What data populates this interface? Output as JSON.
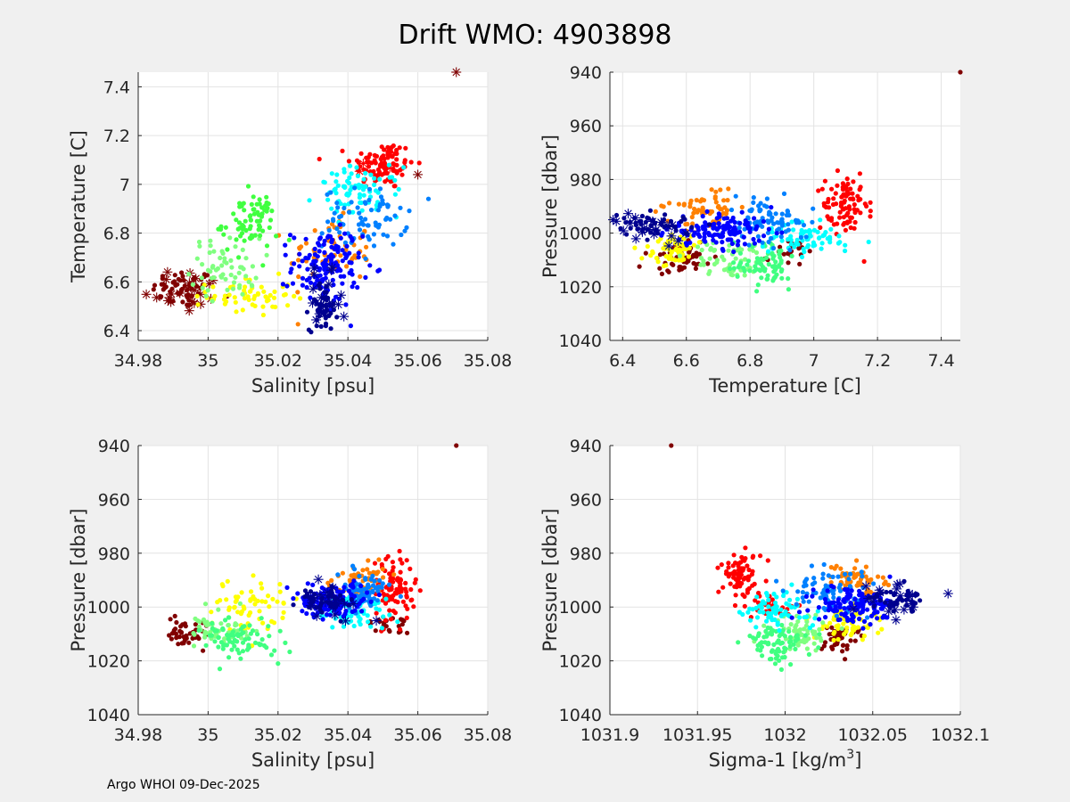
{
  "title": "Drift WMO: 4903898",
  "footer": "Argo WHOI 09-Dec-2025",
  "colors": {
    "figure_bg": "#f0f0f0",
    "axes_bg": "#ffffff",
    "grid": "#e3e3e3",
    "axis": "#262626",
    "palette": [
      "#800000",
      "#ff0000",
      "#ff8000",
      "#ffff00",
      "#80ff80",
      "#00ffff",
      "#0080ff",
      "#0000ff",
      "#00008f"
    ]
  },
  "chart_data": [
    {
      "type": "scatter",
      "xlabel": "Salinity [psu]",
      "ylabel": "Temperature [C]",
      "xlim": [
        34.98,
        35.08
      ],
      "ylim": [
        6.36,
        7.46
      ],
      "xticks": [
        34.98,
        35,
        35.02,
        35.04,
        35.06,
        35.08
      ],
      "xtick_labels": [
        "34.98",
        "35",
        "35.02",
        "35.04",
        "35.06",
        "35.08"
      ],
      "yticks": [
        6.4,
        6.6,
        6.8,
        7,
        7.2,
        7.4
      ],
      "ytick_labels": [
        "6.4",
        "6.6",
        "6.8",
        "7",
        "7.2",
        "7.4"
      ],
      "y_reversed": false,
      "clusters": [
        {
          "name": "dark red",
          "color": "#800000",
          "cx": 34.993,
          "cy": 6.57,
          "sx": 0.0045,
          "sy": 0.04,
          "n": 55,
          "star_n": 22
        },
        {
          "name": "red",
          "color": "#ff0000",
          "cx": 35.05,
          "cy": 7.08,
          "sx": 0.0045,
          "sy": 0.05,
          "n": 95,
          "star_n": 3
        },
        {
          "name": "orange",
          "color": "#ff8000",
          "cx": 35.035,
          "cy": 6.72,
          "sx": 0.006,
          "sy": 0.07,
          "n": 65,
          "star_n": 0
        },
        {
          "name": "yellow",
          "color": "#ffff00",
          "cx": 35.012,
          "cy": 6.54,
          "sx": 0.006,
          "sy": 0.04,
          "n": 60,
          "star_n": 0
        },
        {
          "name": "light green",
          "color": "#80ff80",
          "cx": 35.005,
          "cy": 6.66,
          "sx": 0.005,
          "sy": 0.06,
          "n": 60,
          "star_n": 0
        },
        {
          "name": "green",
          "color": "#40ff40",
          "cx": 35.012,
          "cy": 6.84,
          "sx": 0.004,
          "sy": 0.06,
          "n": 75,
          "star_n": 0
        },
        {
          "name": "cyan",
          "color": "#00ffff",
          "cx": 35.043,
          "cy": 6.97,
          "sx": 0.006,
          "sy": 0.05,
          "n": 75,
          "star_n": 0
        },
        {
          "name": "light blue",
          "color": "#0080ff",
          "cx": 35.045,
          "cy": 6.86,
          "sx": 0.006,
          "sy": 0.06,
          "n": 75,
          "star_n": 0
        },
        {
          "name": "blue",
          "color": "#0000ff",
          "cx": 35.034,
          "cy": 6.66,
          "sx": 0.005,
          "sy": 0.08,
          "n": 140,
          "star_n": 0
        },
        {
          "name": "navy",
          "color": "#00008f",
          "cx": 35.033,
          "cy": 6.5,
          "sx": 0.002,
          "sy": 0.05,
          "n": 45,
          "star_n": 22
        }
      ],
      "outliers": [
        {
          "x": 35.071,
          "y": 7.46,
          "color": "#800000",
          "marker": "star"
        },
        {
          "x": 35.06,
          "y": 7.04,
          "color": "#800000",
          "marker": "star"
        },
        {
          "x": 34.988,
          "y": 6.61,
          "color": "#800000",
          "marker": "star"
        }
      ]
    },
    {
      "type": "scatter",
      "xlabel": "Temperature [C]",
      "ylabel": "Pressure [dbar]",
      "xlim": [
        6.36,
        7.46
      ],
      "ylim": [
        940,
        1040
      ],
      "xticks": [
        6.4,
        6.6,
        6.8,
        7,
        7.2,
        7.4
      ],
      "xtick_labels": [
        "6.4",
        "6.6",
        "6.8",
        "7",
        "7.2",
        "7.4"
      ],
      "yticks": [
        940,
        960,
        980,
        1000,
        1020,
        1040
      ],
      "ytick_labels": [
        "940",
        "960",
        "980",
        "1000",
        "1020",
        "1040"
      ],
      "y_reversed": true,
      "clusters": [
        {
          "name": "dark red",
          "color": "#800000",
          "cx": 6.58,
          "cy": 1009,
          "sx": 0.05,
          "sy": 3.5,
          "n": 55,
          "star_n": 0
        },
        {
          "name": "dark red 2",
          "color": "#800000",
          "cx": 6.92,
          "cy": 1007,
          "sx": 0.04,
          "sy": 2.5,
          "n": 20,
          "star_n": 0
        },
        {
          "name": "red",
          "color": "#ff0000",
          "cx": 7.1,
          "cy": 990,
          "sx": 0.035,
          "sy": 6,
          "n": 90,
          "star_n": 0
        },
        {
          "name": "orange",
          "color": "#ff8000",
          "cx": 6.66,
          "cy": 991,
          "sx": 0.05,
          "sy": 4,
          "n": 60,
          "star_n": 0
        },
        {
          "name": "yellow",
          "color": "#ffff00",
          "cx": 6.56,
          "cy": 1006,
          "sx": 0.05,
          "sy": 3,
          "n": 60,
          "star_n": 0
        },
        {
          "name": "light green",
          "color": "#80ff80",
          "cx": 6.74,
          "cy": 1009,
          "sx": 0.06,
          "sy": 4,
          "n": 60,
          "star_n": 0
        },
        {
          "name": "green",
          "color": "#40ff80",
          "cx": 6.85,
          "cy": 1013,
          "sx": 0.05,
          "sy": 4,
          "n": 75,
          "star_n": 0
        },
        {
          "name": "cyan",
          "color": "#00ffff",
          "cx": 6.98,
          "cy": 1002,
          "sx": 0.06,
          "sy": 3,
          "n": 70,
          "star_n": 0
        },
        {
          "name": "light blue",
          "color": "#0080ff",
          "cx": 6.86,
          "cy": 996,
          "sx": 0.06,
          "sy": 4,
          "n": 80,
          "star_n": 0
        },
        {
          "name": "blue",
          "color": "#0000ff",
          "cx": 6.7,
          "cy": 999,
          "sx": 0.08,
          "sy": 3,
          "n": 140,
          "star_n": 0
        },
        {
          "name": "navy",
          "color": "#00008f",
          "cx": 6.5,
          "cy": 997,
          "sx": 0.06,
          "sy": 2.5,
          "n": 45,
          "star_n": 22
        }
      ],
      "outliers": [
        {
          "x": 7.46,
          "y": 940,
          "color": "#800000",
          "marker": "dot"
        },
        {
          "x": 6.37,
          "y": 995,
          "color": "#00008f",
          "marker": "star"
        }
      ]
    },
    {
      "type": "scatter",
      "xlabel": "Salinity [psu]",
      "ylabel": "Pressure [dbar]",
      "xlim": [
        34.98,
        35.08
      ],
      "ylim": [
        940,
        1040
      ],
      "xticks": [
        34.98,
        35,
        35.02,
        35.04,
        35.06,
        35.08
      ],
      "xtick_labels": [
        "34.98",
        "35",
        "35.02",
        "35.04",
        "35.06",
        "35.08"
      ],
      "yticks": [
        940,
        960,
        980,
        1000,
        1020,
        1040
      ],
      "ytick_labels": [
        "940",
        "960",
        "980",
        "1000",
        "1020",
        "1040"
      ],
      "y_reversed": true,
      "clusters": [
        {
          "name": "dark red",
          "color": "#800000",
          "cx": 34.994,
          "cy": 1010,
          "sx": 0.003,
          "sy": 2.5,
          "n": 45,
          "star_n": 0
        },
        {
          "name": "dark red 2",
          "color": "#800000",
          "cx": 35.052,
          "cy": 1006,
          "sx": 0.003,
          "sy": 2,
          "n": 20,
          "star_n": 0
        },
        {
          "name": "red",
          "color": "#ff0000",
          "cx": 35.053,
          "cy": 994,
          "sx": 0.003,
          "sy": 6,
          "n": 90,
          "star_n": 0
        },
        {
          "name": "orange",
          "color": "#ff8000",
          "cx": 35.043,
          "cy": 991,
          "sx": 0.004,
          "sy": 3.5,
          "n": 60,
          "star_n": 0
        },
        {
          "name": "yellow",
          "color": "#ffff00",
          "cx": 35.012,
          "cy": 1000,
          "sx": 0.006,
          "sy": 5,
          "n": 60,
          "star_n": 0
        },
        {
          "name": "light green",
          "color": "#80ff80",
          "cx": 35.004,
          "cy": 1008,
          "sx": 0.004,
          "sy": 3.5,
          "n": 60,
          "star_n": 0
        },
        {
          "name": "green",
          "color": "#40ff80",
          "cx": 35.009,
          "cy": 1012,
          "sx": 0.005,
          "sy": 4,
          "n": 75,
          "star_n": 0
        },
        {
          "name": "cyan",
          "color": "#00ffff",
          "cx": 35.042,
          "cy": 1002,
          "sx": 0.005,
          "sy": 3,
          "n": 70,
          "star_n": 0
        },
        {
          "name": "light blue",
          "color": "#0080ff",
          "cx": 35.044,
          "cy": 994,
          "sx": 0.004,
          "sy": 3.5,
          "n": 80,
          "star_n": 0
        },
        {
          "name": "blue",
          "color": "#0000ff",
          "cx": 35.036,
          "cy": 998,
          "sx": 0.005,
          "sy": 3,
          "n": 140,
          "star_n": 0
        },
        {
          "name": "navy",
          "color": "#00008f",
          "cx": 35.034,
          "cy": 998,
          "sx": 0.003,
          "sy": 2.5,
          "n": 45,
          "star_n": 20
        }
      ],
      "outliers": [
        {
          "x": 35.071,
          "y": 940,
          "color": "#800000",
          "marker": "dot"
        },
        {
          "x": 35.02,
          "y": 1021,
          "color": "#40ff80",
          "marker": "dot"
        }
      ]
    },
    {
      "type": "scatter",
      "xlabel": "Sigma-1 [kg/m",
      "xlabel_sup": "3",
      "xlabel_end": "]",
      "ylabel": "Pressure [dbar]",
      "xlim": [
        1031.9,
        1032.1
      ],
      "ylim": [
        940,
        1040
      ],
      "xticks": [
        1031.9,
        1031.95,
        1032,
        1032.05,
        1032.1
      ],
      "xtick_labels": [
        "1031.9",
        "1031.95",
        "1032",
        "1032.05",
        "1032.1"
      ],
      "yticks": [
        940,
        960,
        980,
        1000,
        1020,
        1040
      ],
      "ytick_labels": [
        "940",
        "960",
        "980",
        "1000",
        "1020",
        "1040"
      ],
      "y_reversed": true,
      "clusters": [
        {
          "name": "dark red",
          "color": "#800000",
          "cx": 1032.03,
          "cy": 1011,
          "sx": 0.006,
          "sy": 3,
          "n": 45,
          "star_n": 0
        },
        {
          "name": "red",
          "color": "#ff0000",
          "cx": 1031.975,
          "cy": 988,
          "sx": 0.006,
          "sy": 4,
          "n": 75,
          "star_n": 0
        },
        {
          "name": "red 2",
          "color": "#ff0000",
          "cx": 1031.99,
          "cy": 999,
          "sx": 0.006,
          "sy": 2,
          "n": 30,
          "star_n": 0
        },
        {
          "name": "orange",
          "color": "#ff8000",
          "cx": 1032.04,
          "cy": 990,
          "sx": 0.01,
          "sy": 3,
          "n": 60,
          "star_n": 0
        },
        {
          "name": "yellow",
          "color": "#ffff00",
          "cx": 1032.035,
          "cy": 1006,
          "sx": 0.009,
          "sy": 3,
          "n": 60,
          "star_n": 0
        },
        {
          "name": "light green",
          "color": "#80ff80",
          "cx": 1032.01,
          "cy": 1010,
          "sx": 0.01,
          "sy": 3.5,
          "n": 60,
          "star_n": 0
        },
        {
          "name": "green",
          "color": "#40ff80",
          "cx": 1031.995,
          "cy": 1013,
          "sx": 0.01,
          "sy": 4,
          "n": 75,
          "star_n": 0
        },
        {
          "name": "cyan",
          "color": "#00ffff",
          "cx": 1031.995,
          "cy": 1001,
          "sx": 0.01,
          "sy": 3,
          "n": 70,
          "star_n": 0
        },
        {
          "name": "light blue",
          "color": "#0080ff",
          "cx": 1032.025,
          "cy": 994,
          "sx": 0.012,
          "sy": 3.5,
          "n": 80,
          "star_n": 0
        },
        {
          "name": "blue",
          "color": "#0000ff",
          "cx": 1032.04,
          "cy": 999,
          "sx": 0.012,
          "sy": 3,
          "n": 140,
          "star_n": 0
        },
        {
          "name": "navy",
          "color": "#00008f",
          "cx": 1032.065,
          "cy": 997,
          "sx": 0.008,
          "sy": 2.5,
          "n": 45,
          "star_n": 20
        }
      ],
      "outliers": [
        {
          "x": 1031.935,
          "y": 940,
          "color": "#800000",
          "marker": "dot"
        },
        {
          "x": 1032.093,
          "y": 995,
          "color": "#00008f",
          "marker": "star"
        }
      ]
    }
  ]
}
